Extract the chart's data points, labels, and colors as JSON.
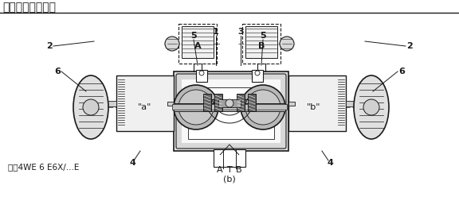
{
  "title": "功能说明，剖视图",
  "title_fontsize": 10,
  "model_text": "型号4WE 6 E6X/...E",
  "model_fontsize": 7.5,
  "subtitle": "(b)",
  "labels": {
    "num_2_left": "2",
    "num_2_right": "2",
    "num_6_left": "6",
    "num_6_right": "6",
    "num_5_left": "5",
    "num_5_right": "5",
    "num_1": "1",
    "num_3": "3",
    "num_4_left": "4",
    "num_4_right": "4",
    "bottom_A": "A",
    "bottom_T": "T",
    "bottom_B": "B",
    "port_a": "\"a\"",
    "port_b": "\"b\"",
    "conn_A": "A",
    "conn_B": "B"
  },
  "colors": {
    "background": "#ffffff",
    "line": "#1a1a1a",
    "body_fill": "#f0f0f0",
    "gray_medium": "#c8c8c8",
    "gray_dark": "#888888",
    "gray_light": "#e8e8e8",
    "dot_fill": "#d8d8d8",
    "spool_dark": "#606060",
    "centerline": "#999999"
  }
}
